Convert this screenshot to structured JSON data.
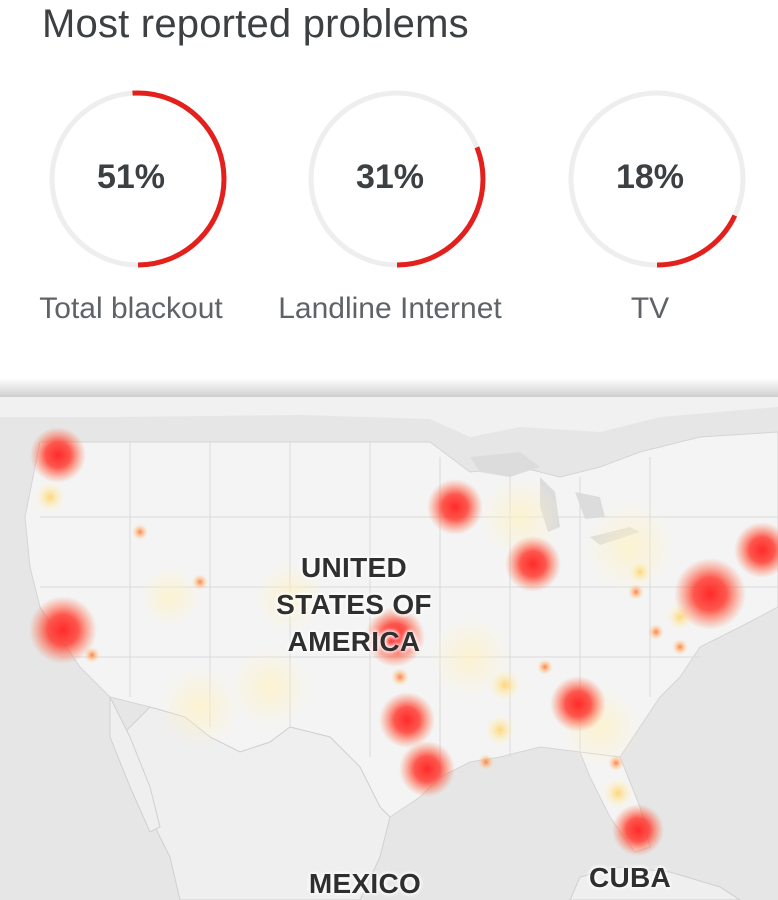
{
  "header": {
    "title": "Most reported problems"
  },
  "problems": [
    {
      "percent_label": "51%",
      "label": "Total blackout",
      "fraction": 0.51
    },
    {
      "percent_label": "31%",
      "label": "Landline Internet",
      "fraction": 0.31
    },
    {
      "percent_label": "18%",
      "label": "TV",
      "fraction": 0.18
    }
  ],
  "colors": {
    "accent": "#e3201b",
    "track": "#eeeeee",
    "text": "#3c4043",
    "subtext": "#5f6368"
  },
  "map": {
    "labels": {
      "usa": "UNITED STATES OF AMERICA",
      "mexico": "MEXICO",
      "cuba": "CUBA"
    }
  }
}
